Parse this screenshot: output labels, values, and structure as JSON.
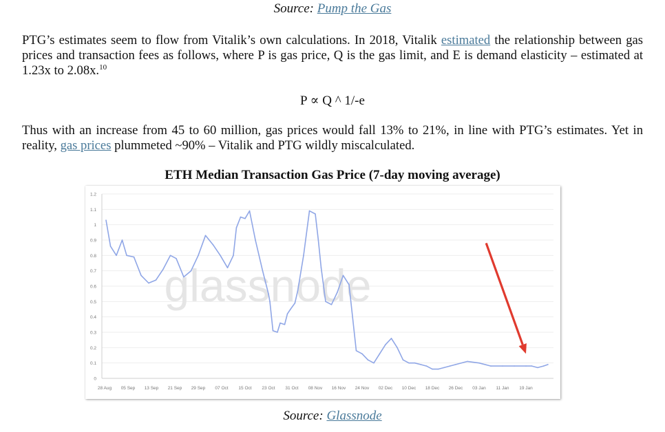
{
  "top_caption": {
    "prefix": "Source:",
    "link": "Pump the Gas"
  },
  "para1": {
    "t1": "PTG’s estimates seem to flow from Vitalik’s own calculations. In 2018, Vitalik",
    "link": "estimated",
    "t2": "the relationship between gas prices and transaction fees as follows, where P is gas price, Q is the gas limit, and E is demand elasticity – estimated at 1.23x to 2.08x.",
    "footnote": "10"
  },
  "formula": "P ∝ Q ^ 1/-e",
  "para2": {
    "t1": "Thus with an increase from 45 to 60 million, gas prices would fall 13% to 21%, in line with PTG’s estimates. Yet in reality,",
    "link": "gas prices",
    "t2": "plummeted ~90% – Vitalik and PTG wildly miscalculated."
  },
  "bottom_caption": {
    "prefix": "Source:",
    "link": "Glassnode"
  },
  "chart_data": {
    "type": "line",
    "title": "ETH Median Transaction Gas Price (7-day moving average)",
    "watermark": "glassnode",
    "xlabel": "",
    "ylabel": "",
    "ylim": [
      0,
      1.2
    ],
    "yticks": [
      "0",
      "0.1",
      "0.2",
      "0.3",
      "0.4",
      "0.5",
      "0.6",
      "0.7",
      "0.8",
      "0.9",
      "1",
      "1.1",
      "1.2"
    ],
    "xticks": [
      "28 Aug",
      "05 Sep",
      "13 Sep",
      "21 Sep",
      "29 Sep",
      "07 Oct",
      "15 Oct",
      "23 Oct",
      "31 Oct",
      "08 Nov",
      "16 Nov",
      "24 Nov",
      "02 Dec",
      "10 Dec",
      "18 Dec",
      "26 Dec",
      "03 Jan",
      "11 Jan",
      "19 Jan"
    ],
    "grid": true,
    "line_color": "#8fa6e6",
    "annotation": {
      "type": "arrow",
      "color": "#e03a2e",
      "from": [
        16.3,
        0.88
      ],
      "to": [
        18.0,
        0.16
      ]
    },
    "series": [
      {
        "name": "Median gas price (7d MA)",
        "x": [
          0.06,
          0.25,
          0.5,
          0.75,
          0.94,
          1.25,
          1.56,
          1.88,
          2.19,
          2.5,
          2.81,
          3.06,
          3.38,
          3.69,
          4.0,
          4.31,
          4.63,
          4.94,
          5.25,
          5.5,
          5.63,
          5.81,
          6.0,
          6.19,
          6.44,
          6.75,
          7.0,
          7.06,
          7.19,
          7.38,
          7.5,
          7.69,
          7.81,
          7.94,
          8.13,
          8.25,
          8.5,
          8.75,
          9.0,
          9.13,
          9.25,
          9.44,
          9.69,
          9.94,
          10.19,
          10.44,
          10.75,
          11.0,
          11.25,
          11.5,
          11.75,
          12.0,
          12.25,
          12.5,
          12.75,
          13.0,
          13.25,
          13.5,
          13.75,
          14.0,
          14.25,
          14.5,
          14.75,
          15.0,
          15.5,
          16.0,
          16.5,
          17.0,
          17.5,
          18.0,
          18.25,
          18.5,
          18.75,
          18.94
        ],
        "values": [
          1.03,
          0.86,
          0.8,
          0.9,
          0.8,
          0.79,
          0.67,
          0.62,
          0.64,
          0.71,
          0.8,
          0.78,
          0.66,
          0.7,
          0.8,
          0.93,
          0.87,
          0.8,
          0.72,
          0.8,
          0.98,
          1.05,
          1.04,
          1.09,
          0.9,
          0.7,
          0.55,
          0.5,
          0.31,
          0.3,
          0.36,
          0.35,
          0.42,
          0.45,
          0.49,
          0.57,
          0.8,
          1.09,
          1.07,
          0.9,
          0.72,
          0.5,
          0.48,
          0.56,
          0.67,
          0.61,
          0.18,
          0.16,
          0.12,
          0.1,
          0.16,
          0.22,
          0.26,
          0.2,
          0.12,
          0.1,
          0.1,
          0.09,
          0.08,
          0.06,
          0.06,
          0.07,
          0.08,
          0.09,
          0.11,
          0.1,
          0.08,
          0.08,
          0.08,
          0.08,
          0.08,
          0.07,
          0.08,
          0.09
        ]
      }
    ]
  }
}
